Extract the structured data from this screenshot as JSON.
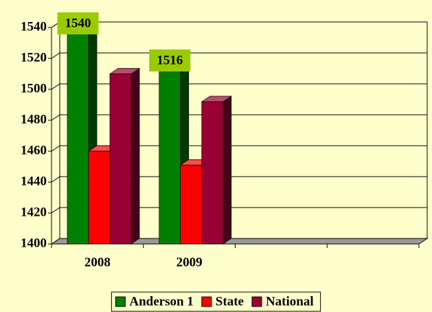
{
  "chart_data": {
    "type": "bar3d",
    "categories": [
      "2008",
      "2009",
      null,
      null
    ],
    "series": [
      {
        "name": "Anderson 1",
        "color": "#008000",
        "values": [
          1540,
          1516,
          null,
          null
        ],
        "show_labels": true
      },
      {
        "name": "State",
        "color": "#ff0000",
        "values": [
          1460,
          1451,
          null,
          null
        ]
      },
      {
        "name": "National",
        "color": "#990033",
        "values": [
          1510,
          1492,
          null,
          null
        ]
      }
    ],
    "ylim": [
      1400,
      1540
    ],
    "yticks": [
      1400,
      1420,
      1440,
      1460,
      1480,
      1500,
      1520,
      1540
    ],
    "grid": true,
    "legend": "bottom"
  }
}
